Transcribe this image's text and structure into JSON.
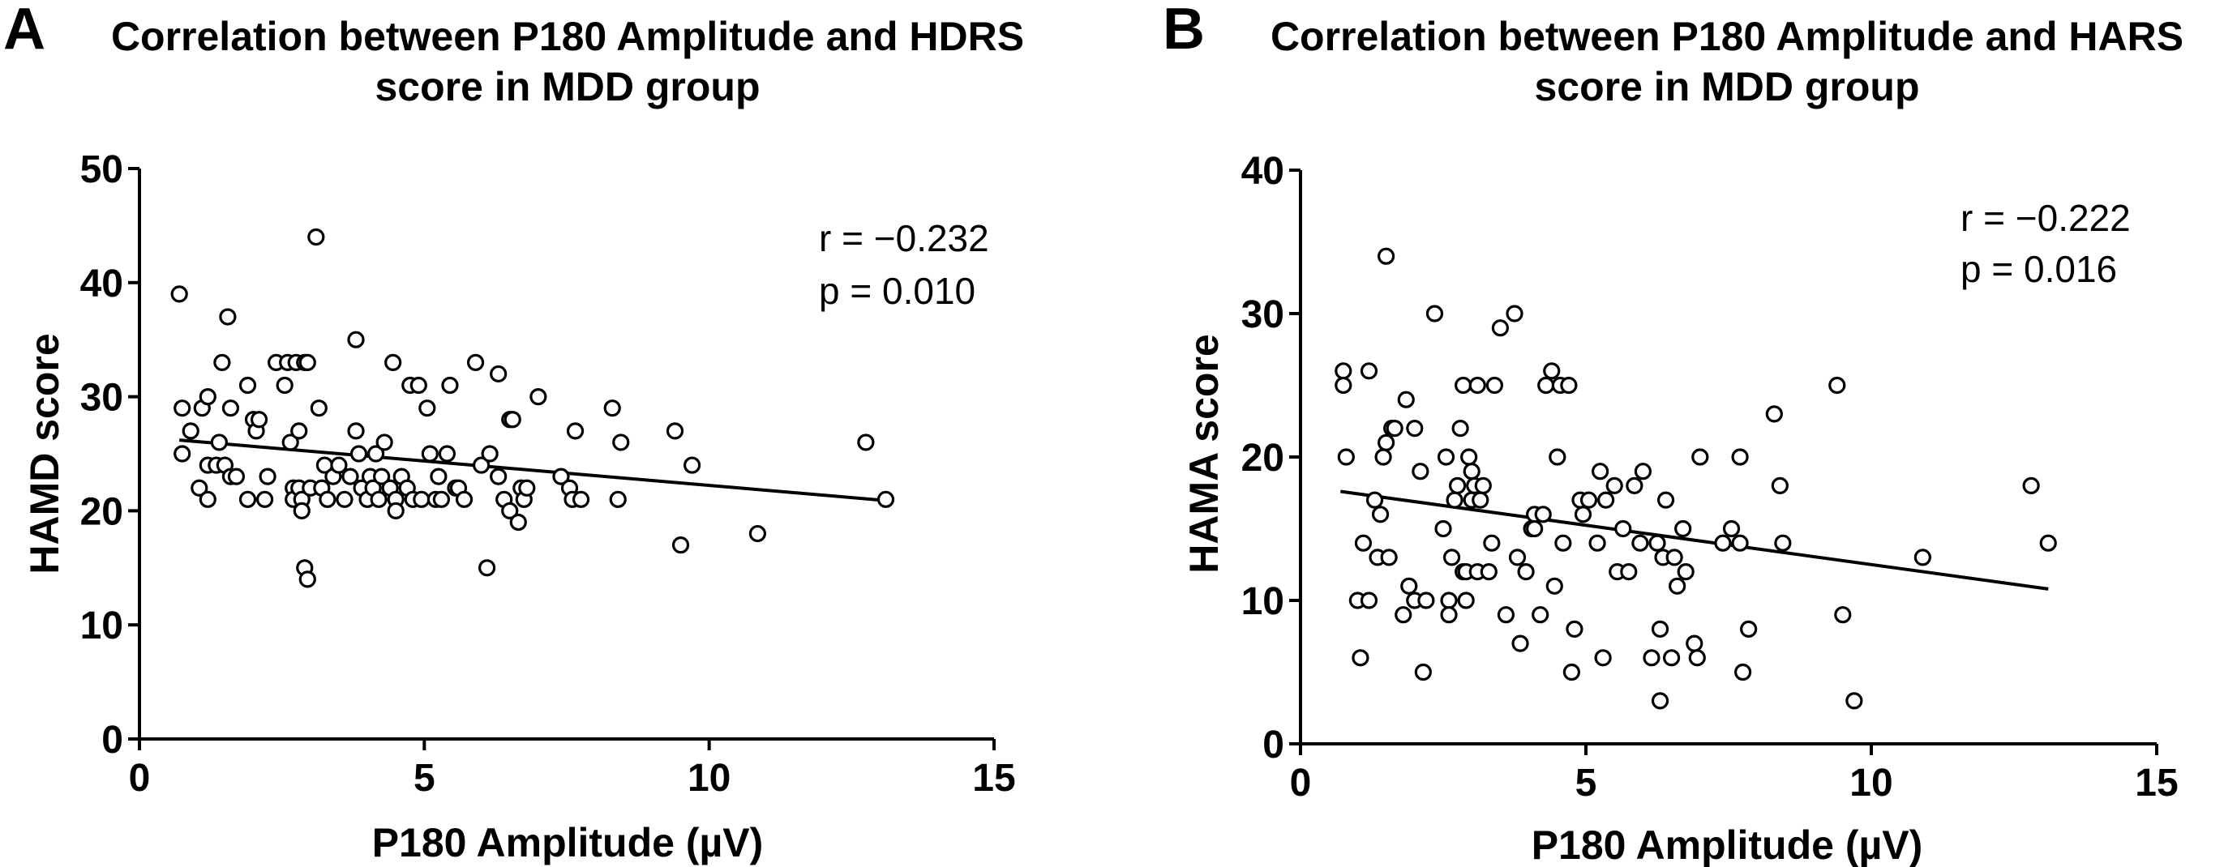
{
  "chart_data": [
    {
      "type": "scatter",
      "panel_label": "A",
      "title_lines": [
        "Correlation between P180 Amplitude and HDRS",
        "score in MDD group"
      ],
      "xlabel": "P180 Amplitude (µV)",
      "ylabel": "HAMD score",
      "xlim": [
        0,
        15
      ],
      "ylim": [
        0,
        50
      ],
      "xticks": [
        0,
        5,
        10,
        15
      ],
      "yticks": [
        0,
        10,
        20,
        30,
        40,
        50
      ],
      "annotations": [
        "r = −0.232",
        "p = 0.010"
      ],
      "regression": {
        "x": [
          0.7,
          13.1
        ],
        "y": [
          26.2,
          20.9
        ]
      },
      "points": [
        [
          0.7,
          39
        ],
        [
          0.75,
          29
        ],
        [
          0.75,
          25
        ],
        [
          0.9,
          27
        ],
        [
          1.1,
          29
        ],
        [
          1.05,
          22
        ],
        [
          1.2,
          30
        ],
        [
          1.2,
          24
        ],
        [
          1.2,
          21
        ],
        [
          1.35,
          24
        ],
        [
          1.4,
          26
        ],
        [
          1.45,
          33
        ],
        [
          1.5,
          24
        ],
        [
          1.55,
          37
        ],
        [
          1.6,
          23
        ],
        [
          1.6,
          29
        ],
        [
          1.7,
          23
        ],
        [
          1.9,
          31
        ],
        [
          1.9,
          21
        ],
        [
          2.0,
          28
        ],
        [
          2.05,
          27
        ],
        [
          2.1,
          28
        ],
        [
          2.2,
          21
        ],
        [
          2.25,
          23
        ],
        [
          2.4,
          33
        ],
        [
          2.55,
          31
        ],
        [
          2.6,
          33
        ],
        [
          2.65,
          26
        ],
        [
          2.7,
          22
        ],
        [
          2.7,
          21
        ],
        [
          2.75,
          33
        ],
        [
          2.8,
          27
        ],
        [
          2.8,
          22
        ],
        [
          2.85,
          21
        ],
        [
          2.85,
          20
        ],
        [
          2.9,
          33
        ],
        [
          2.95,
          33
        ],
        [
          2.9,
          15
        ],
        [
          2.95,
          14
        ],
        [
          3.0,
          22
        ],
        [
          3.1,
          44
        ],
        [
          3.15,
          29
        ],
        [
          3.2,
          22
        ],
        [
          3.25,
          24
        ],
        [
          3.3,
          21
        ],
        [
          3.4,
          23
        ],
        [
          3.5,
          24
        ],
        [
          3.6,
          21
        ],
        [
          3.7,
          23
        ],
        [
          3.8,
          35
        ],
        [
          3.8,
          27
        ],
        [
          3.85,
          25
        ],
        [
          3.9,
          22
        ],
        [
          4.0,
          21
        ],
        [
          4.05,
          23
        ],
        [
          4.1,
          22
        ],
        [
          4.15,
          25
        ],
        [
          4.2,
          21
        ],
        [
          4.25,
          23
        ],
        [
          4.3,
          26
        ],
        [
          4.4,
          22
        ],
        [
          4.45,
          33
        ],
        [
          4.5,
          21
        ],
        [
          4.5,
          20
        ],
        [
          4.6,
          23
        ],
        [
          4.7,
          22
        ],
        [
          4.75,
          31
        ],
        [
          4.8,
          21
        ],
        [
          4.9,
          31
        ],
        [
          4.95,
          21
        ],
        [
          5.05,
          29
        ],
        [
          5.1,
          25
        ],
        [
          5.2,
          21
        ],
        [
          5.25,
          23
        ],
        [
          5.3,
          21
        ],
        [
          5.4,
          25
        ],
        [
          5.45,
          31
        ],
        [
          5.55,
          22
        ],
        [
          5.6,
          22
        ],
        [
          5.7,
          21
        ],
        [
          5.9,
          33
        ],
        [
          6.0,
          24
        ],
        [
          6.1,
          15
        ],
        [
          6.15,
          25
        ],
        [
          6.3,
          23
        ],
        [
          6.3,
          32
        ],
        [
          6.4,
          21
        ],
        [
          6.5,
          28
        ],
        [
          6.5,
          20
        ],
        [
          6.55,
          28
        ],
        [
          6.65,
          19
        ],
        [
          6.7,
          22
        ],
        [
          6.75,
          21
        ],
        [
          6.8,
          22
        ],
        [
          7.0,
          30
        ],
        [
          7.4,
          23
        ],
        [
          7.55,
          22
        ],
        [
          7.6,
          21
        ],
        [
          7.65,
          27
        ],
        [
          7.75,
          21
        ],
        [
          8.3,
          29
        ],
        [
          8.4,
          21
        ],
        [
          8.45,
          26
        ],
        [
          9.4,
          27
        ],
        [
          9.5,
          17
        ],
        [
          9.7,
          24
        ],
        [
          10.85,
          18
        ],
        [
          12.75,
          26
        ],
        [
          13.1,
          21
        ]
      ]
    },
    {
      "type": "scatter",
      "panel_label": "B",
      "title_lines": [
        "Correlation between P180 Amplitude and HARS",
        "score in MDD group"
      ],
      "xlabel": "P180 Amplitude (µV)",
      "ylabel": "HAMA score",
      "xlim": [
        0,
        15
      ],
      "ylim": [
        0,
        40
      ],
      "xticks": [
        0,
        5,
        10,
        15
      ],
      "yticks": [
        0,
        10,
        20,
        30,
        40
      ],
      "annotations": [
        "r = −0.222",
        "p = 0.016"
      ],
      "regression": {
        "x": [
          0.7,
          13.1
        ],
        "y": [
          17.6,
          10.8
        ]
      },
      "points": [
        [
          0.75,
          26
        ],
        [
          0.75,
          25
        ],
        [
          0.8,
          20
        ],
        [
          1.0,
          10
        ],
        [
          1.05,
          6
        ],
        [
          1.1,
          14
        ],
        [
          1.2,
          26
        ],
        [
          1.2,
          10
        ],
        [
          1.3,
          17
        ],
        [
          1.35,
          13
        ],
        [
          1.4,
          16
        ],
        [
          1.45,
          20
        ],
        [
          1.5,
          34
        ],
        [
          1.5,
          21
        ],
        [
          1.55,
          13
        ],
        [
          1.6,
          22
        ],
        [
          1.65,
          22
        ],
        [
          1.8,
          9
        ],
        [
          1.85,
          24
        ],
        [
          1.9,
          11
        ],
        [
          2.0,
          22
        ],
        [
          2.0,
          10
        ],
        [
          2.1,
          19
        ],
        [
          2.15,
          5
        ],
        [
          2.2,
          10
        ],
        [
          2.35,
          30
        ],
        [
          2.5,
          15
        ],
        [
          2.55,
          20
        ],
        [
          2.6,
          10
        ],
        [
          2.6,
          9
        ],
        [
          2.65,
          13
        ],
        [
          2.7,
          17
        ],
        [
          2.75,
          18
        ],
        [
          2.8,
          22
        ],
        [
          2.85,
          25
        ],
        [
          2.85,
          12
        ],
        [
          2.9,
          12
        ],
        [
          2.9,
          10
        ],
        [
          2.95,
          20
        ],
        [
          3.0,
          19
        ],
        [
          3.0,
          17
        ],
        [
          3.05,
          18
        ],
        [
          3.1,
          12
        ],
        [
          3.1,
          25
        ],
        [
          3.15,
          17
        ],
        [
          3.2,
          18
        ],
        [
          3.3,
          12
        ],
        [
          3.35,
          14
        ],
        [
          3.4,
          25
        ],
        [
          3.5,
          29
        ],
        [
          3.6,
          9
        ],
        [
          3.75,
          30
        ],
        [
          3.8,
          13
        ],
        [
          3.85,
          7
        ],
        [
          3.95,
          12
        ],
        [
          4.05,
          15
        ],
        [
          4.1,
          16
        ],
        [
          4.1,
          15
        ],
        [
          4.2,
          9
        ],
        [
          4.25,
          16
        ],
        [
          4.3,
          25
        ],
        [
          4.4,
          26
        ],
        [
          4.45,
          11
        ],
        [
          4.5,
          20
        ],
        [
          4.55,
          25
        ],
        [
          4.6,
          14
        ],
        [
          4.7,
          25
        ],
        [
          4.75,
          5
        ],
        [
          4.8,
          8
        ],
        [
          4.9,
          17
        ],
        [
          4.95,
          16
        ],
        [
          5.05,
          17
        ],
        [
          5.2,
          14
        ],
        [
          5.25,
          19
        ],
        [
          5.3,
          6
        ],
        [
          5.35,
          17
        ],
        [
          5.5,
          18
        ],
        [
          5.55,
          12
        ],
        [
          5.65,
          15
        ],
        [
          5.75,
          12
        ],
        [
          5.85,
          18
        ],
        [
          5.95,
          14
        ],
        [
          6.0,
          19
        ],
        [
          6.15,
          6
        ],
        [
          6.25,
          14
        ],
        [
          6.3,
          3
        ],
        [
          6.3,
          8
        ],
        [
          6.35,
          13
        ],
        [
          6.4,
          17
        ],
        [
          6.5,
          6
        ],
        [
          6.55,
          13
        ],
        [
          6.6,
          11
        ],
        [
          6.7,
          15
        ],
        [
          6.75,
          12
        ],
        [
          6.9,
          7
        ],
        [
          6.95,
          6
        ],
        [
          7.0,
          20
        ],
        [
          7.4,
          14
        ],
        [
          7.55,
          15
        ],
        [
          7.7,
          14
        ],
        [
          7.7,
          20
        ],
        [
          7.75,
          5
        ],
        [
          7.85,
          8
        ],
        [
          8.3,
          23
        ],
        [
          8.4,
          18
        ],
        [
          8.45,
          14
        ],
        [
          9.4,
          25
        ],
        [
          9.5,
          9
        ],
        [
          9.7,
          3
        ],
        [
          10.9,
          13
        ],
        [
          12.8,
          18
        ],
        [
          13.1,
          14
        ]
      ]
    }
  ]
}
